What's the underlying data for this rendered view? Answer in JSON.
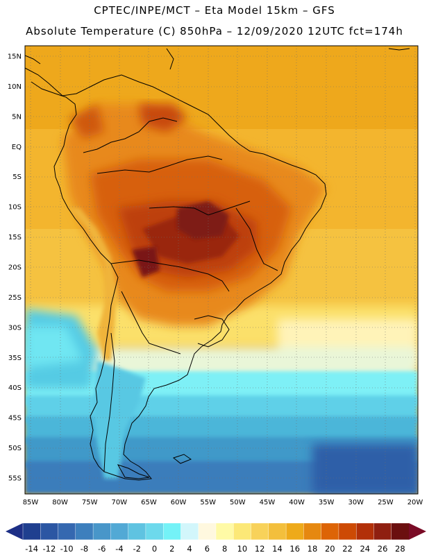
{
  "title": {
    "line1": "CPTEC/INPE/MCT –  Eta Model 15km – GFS",
    "line2": "Absolute Temperature (C) 850hPa – 12/09/2020 12UTC fct=174h"
  },
  "map": {
    "region": "South America",
    "variable": "Absolute Temperature (C) 850hPa",
    "lon_range": [
      -86,
      -19
    ],
    "lat_range": [
      -58,
      16
    ],
    "lat_labels": [
      "15N",
      "10N",
      "5N",
      "EQ",
      "5S",
      "10S",
      "15S",
      "20S",
      "25S",
      "30S",
      "35S",
      "40S",
      "45S",
      "50S",
      "55S"
    ],
    "lat_values": [
      15,
      10,
      5,
      0,
      -5,
      -10,
      -15,
      -20,
      -25,
      -30,
      -35,
      -40,
      -45,
      -50,
      -55
    ],
    "lon_labels": [
      "85W",
      "80W",
      "75W",
      "70W",
      "65W",
      "60W",
      "55W",
      "50W",
      "45W",
      "40W",
      "35W",
      "30W",
      "25W",
      "20W"
    ],
    "lon_values": [
      -85,
      -80,
      -75,
      -70,
      -65,
      -60,
      -55,
      -50,
      -45,
      -40,
      -35,
      -30,
      -25,
      -20
    ]
  },
  "colorbar": {
    "levels": [
      "-14",
      "-12",
      "-10",
      "-8",
      "-6",
      "-4",
      "-2",
      "0",
      "2",
      "4",
      "6",
      "8",
      "10",
      "12",
      "14",
      "16",
      "18",
      "20",
      "22",
      "24",
      "26",
      "28"
    ],
    "colors": [
      "#1f3f8f",
      "#2b56a3",
      "#3568b0",
      "#3d7fbd",
      "#4896c9",
      "#52a9d5",
      "#5fc3e1",
      "#6dd9ec",
      "#74f2f7",
      "#d2f6fb",
      "#fff8df",
      "#fffaa6",
      "#fce877",
      "#f8d25a",
      "#f3bf3c",
      "#eeaa1a",
      "#e68810",
      "#dd6406",
      "#cd4a04",
      "#b23008",
      "#8f1f10",
      "#6b0f0f"
    ],
    "under_color": "#1d2f86",
    "over_color": "#7a0b26"
  }
}
